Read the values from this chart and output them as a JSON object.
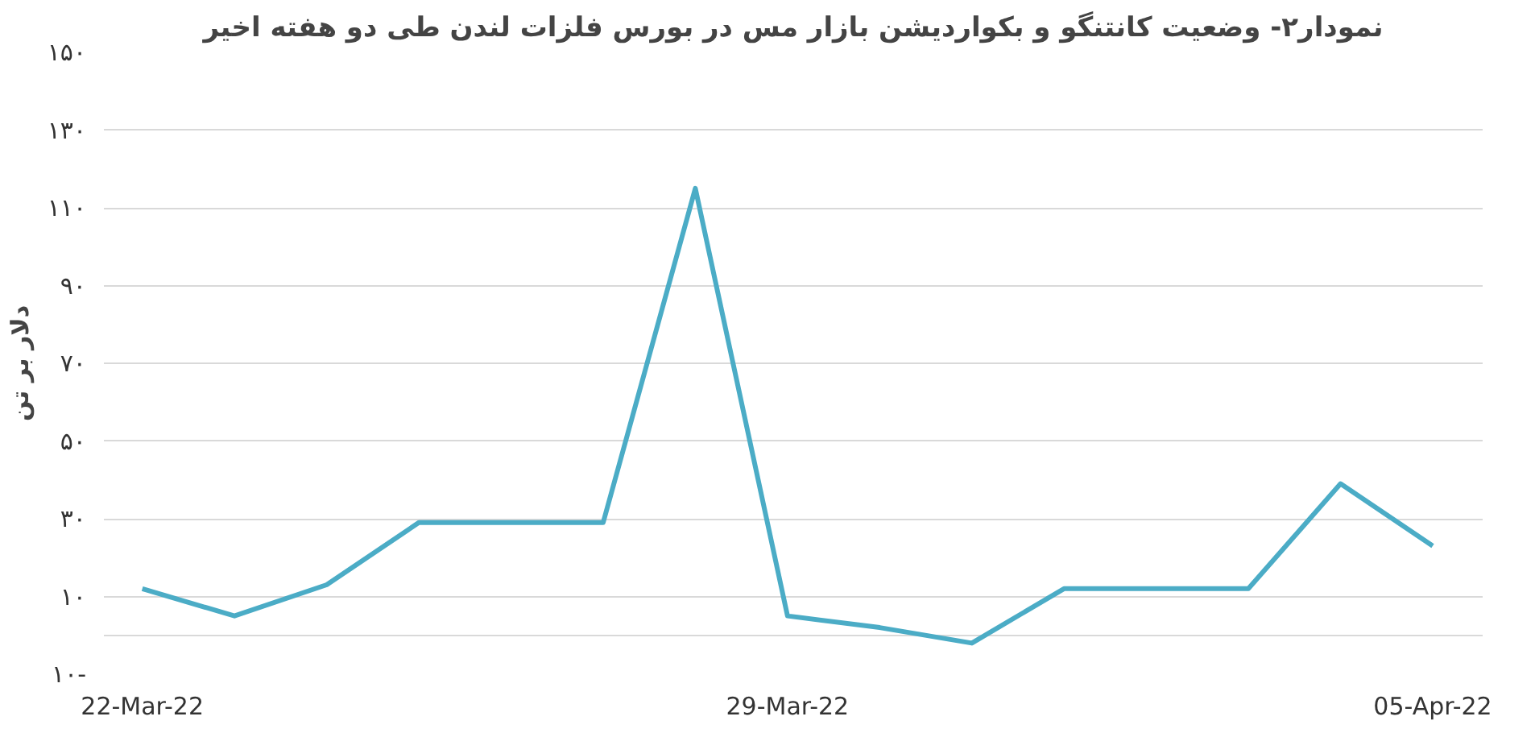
{
  "chart_data": {
    "type": "line",
    "title": "نمودار۲- وضعیت کانتنگو و بکواردیشن بازار مس در بورس فلزات لندن طی دو هفته اخیر",
    "ylabel": "دلار بر تن",
    "x": [
      "2022-03-22",
      "2022-03-23",
      "2022-03-24",
      "2022-03-25",
      "2022-03-26",
      "2022-03-27",
      "2022-03-28",
      "2022-03-29",
      "2022-03-30",
      "2022-03-31",
      "2022-04-01",
      "2022-04-02",
      "2022-04-03",
      "2022-04-04",
      "2022-04-05"
    ],
    "series": [
      {
        "color": "#4bacc6",
        "values": [
          12,
          5,
          13,
          29,
          29,
          29,
          115,
          5,
          2,
          -2,
          12,
          12,
          12,
          39,
          23
        ]
      }
    ],
    "xlim": [
      "2022-03-21T14:00",
      "2022-04-05T13:00"
    ],
    "xticks": [
      {
        "value": "2022-03-22",
        "label": "22-Mar-22"
      },
      {
        "value": "2022-03-29",
        "label": "29-Mar-22"
      },
      {
        "value": "2022-04-05",
        "label": "05-Apr-22"
      }
    ],
    "ylim": [
      -10,
      150
    ],
    "yticks": [
      {
        "value": -10,
        "label": "۱۰-"
      },
      {
        "value": 0,
        "label": null
      },
      {
        "value": 10,
        "label": "۱۰"
      },
      {
        "value": 30,
        "label": "۳۰"
      },
      {
        "value": 50,
        "label": "۵۰"
      },
      {
        "value": 70,
        "label": "۷۰"
      },
      {
        "value": 90,
        "label": "۹۰"
      },
      {
        "value": 110,
        "label": "۱۱۰"
      },
      {
        "value": 130,
        "label": "۱۳۰"
      },
      {
        "value": 150,
        "label": "۱۵۰"
      }
    ],
    "grid": "y",
    "marker": "none",
    "line_style": "solid"
  }
}
